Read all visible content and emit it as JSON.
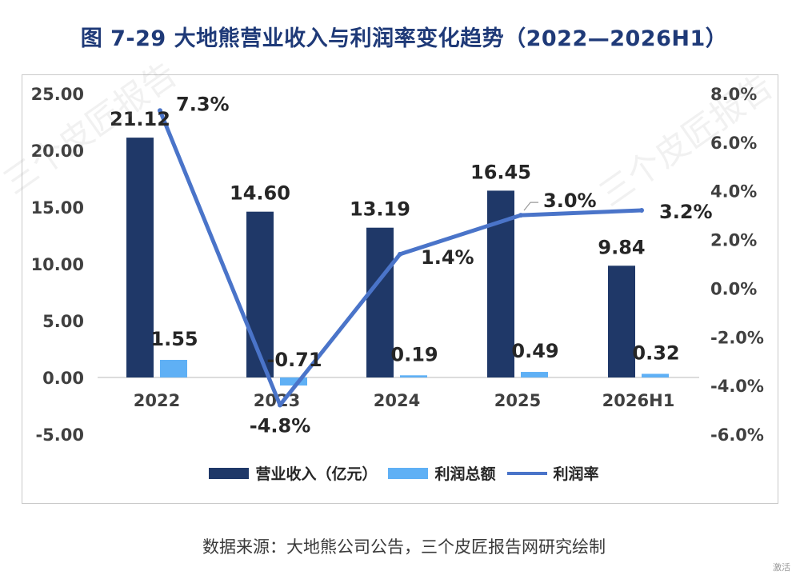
{
  "title": "图 7-29  大地熊营业收入与利润率变化趋势（2022—2026H1）",
  "source": "数据来源：大地熊公司公告，三个皮匠报告网研究绘制",
  "watermark": "三个皮匠报告",
  "corner_text": "激活",
  "colors": {
    "revenue": "#1f3868",
    "profit": "#5fb0f5",
    "margin": "#4a74c9",
    "title": "#1f3a78"
  },
  "chart_data": {
    "type": "bar",
    "categories": [
      "2022",
      "2023",
      "2024",
      "2025",
      "2026H1"
    ],
    "series": [
      {
        "name": "营业收入（亿元）",
        "type": "bar",
        "axis": "left",
        "values": [
          21.12,
          14.6,
          13.19,
          16.45,
          9.84
        ],
        "labels": [
          "21.12",
          "14.60",
          "13.19",
          "16.45",
          "9.84"
        ]
      },
      {
        "name": "利润总额",
        "type": "bar",
        "axis": "left",
        "values": [
          1.55,
          -0.71,
          0.19,
          0.49,
          0.32
        ],
        "labels": [
          "1.55",
          "-0.71",
          "0.19",
          "0.49",
          "0.32"
        ]
      },
      {
        "name": "利润率",
        "type": "line",
        "axis": "right",
        "values": [
          7.3,
          -4.8,
          1.4,
          3.0,
          3.2
        ],
        "labels": [
          "7.3%",
          "-4.8%",
          "1.4%",
          "3.0%",
          "3.2%"
        ]
      }
    ],
    "y_left": {
      "min": -5,
      "max": 25,
      "ticks": [
        "25.00",
        "20.00",
        "15.00",
        "10.00",
        "5.00",
        "0.00",
        "-5.00"
      ]
    },
    "y_right": {
      "min": -6,
      "max": 8,
      "ticks": [
        "8.0%",
        "6.0%",
        "4.0%",
        "2.0%",
        "0.0%",
        "-2.0%",
        "-4.0%",
        "-6.0%"
      ]
    },
    "grid": false,
    "legend_position": "bottom"
  }
}
